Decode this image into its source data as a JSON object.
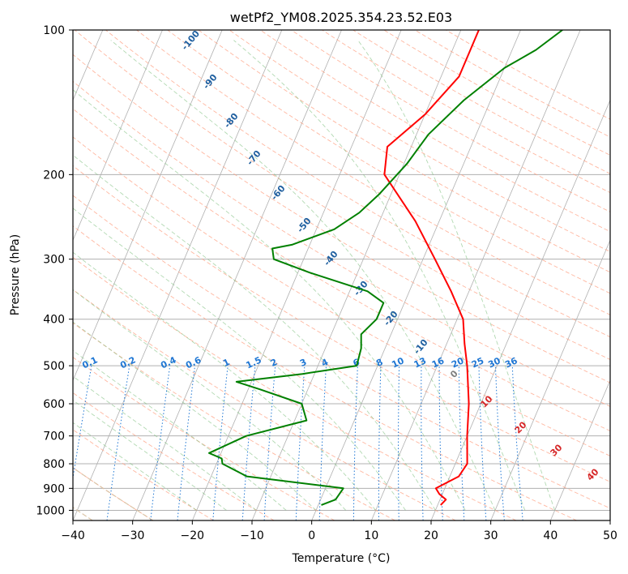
{
  "chart_data": {
    "type": "line",
    "title": "wetPf2_YM08.2025.354.23.52.E03",
    "xlabel": "Temperature (°C)",
    "ylabel": "Pressure (hPa)",
    "xlim": [
      -40,
      50
    ],
    "ylim": [
      1050,
      100
    ],
    "y_scale": "log",
    "grid": true,
    "x_ticks": [
      "−40",
      "−30",
      "−20",
      "−10",
      "0",
      "10",
      "20",
      "30",
      "40",
      "50"
    ],
    "y_ticks": [
      "1000",
      "900",
      "800",
      "700",
      "600",
      "500",
      "400",
      "300",
      "200",
      "100"
    ],
    "series": [
      {
        "role": "temperature",
        "color": "#ff0000",
        "pressure": [
          975,
          950,
          925,
          900,
          850,
          800,
          700,
          600,
          500,
          450,
          400,
          350,
          300,
          250,
          200,
          175,
          150,
          125,
          110,
          100
        ],
        "temperature": [
          20.5,
          21,
          19.5,
          18.5,
          21.5,
          22,
          20,
          18,
          15,
          13,
          11,
          7,
          2,
          -4,
          -12.5,
          -14,
          -10,
          -7,
          -7,
          -7
        ]
      },
      {
        "role": "dewpoint",
        "color": "#008000",
        "pressure": [
          975,
          950,
          900,
          850,
          800,
          780,
          760,
          700,
          650,
          600,
          560,
          540,
          520,
          500,
          460,
          430,
          400,
          370,
          350,
          320,
          300,
          285,
          280,
          260,
          240,
          220,
          190,
          165,
          140,
          120,
          110,
          100
        ],
        "temperature": [
          0.5,
          2.5,
          3,
          -14,
          -19,
          -19.5,
          -22,
          -17,
          -8,
          -10,
          -18,
          -22.5,
          -12,
          -3.5,
          -4,
          -5,
          -3.5,
          -3.5,
          -7,
          -18,
          -25,
          -26,
          -23,
          -17,
          -14,
          -12,
          -9.5,
          -8,
          -4.5,
          0,
          4,
          7
        ]
      }
    ],
    "isotherm_labels": [
      "0",
      "10",
      "20",
      "30",
      "40"
    ],
    "dry_adiabat_labels": [
      "-100",
      "-90",
      "-80",
      "-70",
      "-60",
      "-50",
      "-40",
      "-30",
      "-20",
      "-10"
    ],
    "mixing_ratio_labels": [
      "0.1",
      "0.2",
      "0.4",
      "0.6",
      "1",
      "1.5",
      "2",
      "3",
      "4",
      "6",
      "8",
      "10",
      "13",
      "16",
      "20",
      "25",
      "30",
      "36"
    ],
    "mixing_ratio_values": [
      0.1,
      0.2,
      0.4,
      0.6,
      1,
      1.5,
      2,
      3,
      4,
      6,
      8,
      10,
      13,
      16,
      20,
      25,
      30,
      36
    ],
    "colors": {
      "isotherm_labels": "#d62728",
      "isotherm_zero": "#7f7f7f",
      "dry_adiabats": "#ff9f80",
      "moist_adiabats": "#7fbf7f",
      "mixing_ratio": "#1f77d4",
      "dry_adiabat_labels": "#1f5f9f",
      "skewed_isotherms": "#b0b0b0",
      "grid": "#b0b0b0",
      "boundary_curve": "#d8c0a0"
    }
  }
}
